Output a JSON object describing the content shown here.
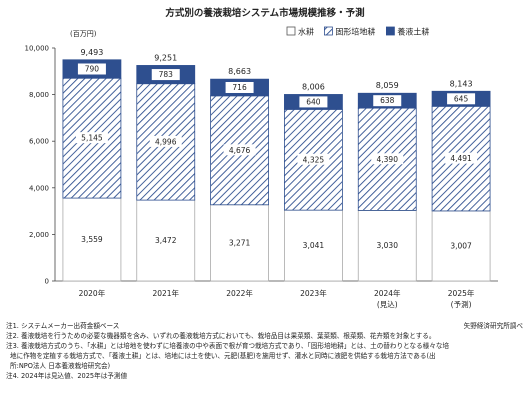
{
  "chart_data": {
    "type": "bar",
    "stacked": true,
    "title": "方式別の養液栽培システム市場規模推移・予測",
    "unit": "(百万円)",
    "categories": [
      "2020年",
      "2021年",
      "2022年",
      "2023年",
      "2024年",
      "2025年"
    ],
    "category_sublabels": [
      "",
      "",
      "",
      "",
      "(見込)",
      "(予測)"
    ],
    "series": [
      {
        "name": "水耕",
        "values": [
          3559,
          3472,
          3271,
          3041,
          3030,
          3007
        ],
        "color": "#ffffff"
      },
      {
        "name": "固形培地耕",
        "values": [
          5145,
          4996,
          4676,
          4325,
          4390,
          4491
        ],
        "color": "#2e4f8f"
      },
      {
        "name": "養液土耕",
        "values": [
          790,
          783,
          716,
          640,
          638,
          645
        ],
        "color": "#2e4f8f"
      }
    ],
    "totals": [
      9493,
      9251,
      8663,
      8006,
      8059,
      8143
    ],
    "value_labels": [
      [
        "3,559",
        "3,472",
        "3,271",
        "3,041",
        "3,030",
        "3,007"
      ],
      [
        "5,145",
        "4,996",
        "4,676",
        "4,325",
        "4,390",
        "4,491"
      ],
      [
        "790",
        "783",
        "716",
        "640",
        "638",
        "645"
      ]
    ],
    "total_labels": [
      "9,493",
      "9,251",
      "8,663",
      "8,006",
      "8,059",
      "8,143"
    ],
    "ylim": [
      0,
      10000
    ],
    "yticks": [
      0,
      2000,
      4000,
      6000,
      8000,
      10000
    ],
    "ytick_labels": [
      "0",
      "2,000",
      "4,000",
      "6,000",
      "8,000",
      "10,000"
    ],
    "grid": false,
    "legend_position": "top-right"
  },
  "notes": [
    "注1. システムメーカー出荷金額ベース",
    "注2. 養液栽培を行うための必要な機器類を含み、いずれの養液栽培方式においても、栽培品目は果菜類、葉菜類、根菜類、花卉類を対象とする。",
    "注3. 養液栽培方式のうち、「水耕」とは培地を使わずに培養液の中や表面で根が育つ栽培方式であり、「固形培地耕」とは、土の替わりとなる様々な培",
    "地に作物を定植する栽培方式で、「養液土耕」とは、培地には土を使い、元肥(基肥)を施用せず、灌水と同時に液肥を供給する栽培方法である(出",
    "所:NPO法人 日本養液栽培研究会)",
    "注4. 2024年は見込値、2025年は予測値"
  ],
  "source": "矢野経済研究所調べ"
}
